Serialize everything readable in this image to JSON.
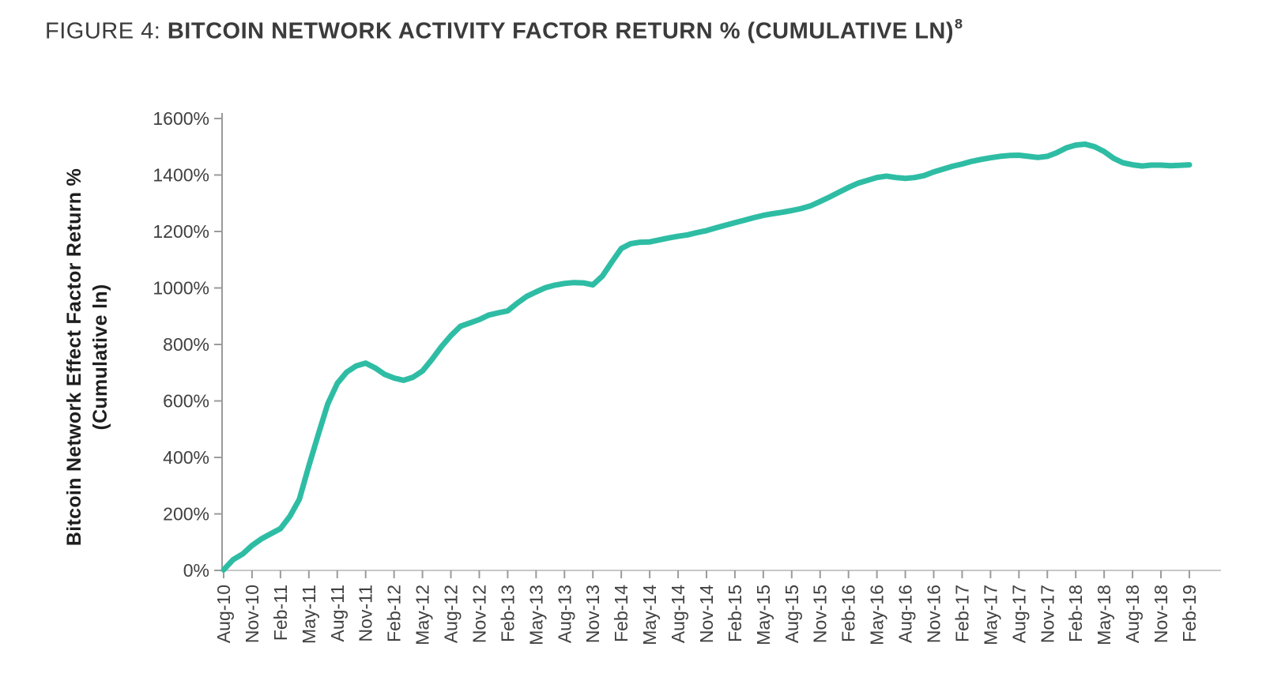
{
  "figure": {
    "title_prefix": "FIGURE 4: ",
    "title_main": "BITCOIN NETWORK ACTIVITY FACTOR RETURN % (CUMULATIVE LN)",
    "title_superscript": "8"
  },
  "colors": {
    "line": "#2ebda4",
    "title_text": "#3b3b3b",
    "tick_text": "#414042",
    "axis_label_text": "#1e1e1e",
    "x_axis_line": "#c7c7c7",
    "y_axis_line": "#9b9b9b",
    "tick_mark": "#9b9b9b",
    "background": "#ffffff"
  },
  "chart_data": {
    "type": "line",
    "title": "FIGURE 4: BITCOIN NETWORK ACTIVITY FACTOR RETURN % (CUMULATIVE LN)8",
    "xlabel": "",
    "ylabel_line1": "Bitcoin Network Effect Factor Return %",
    "ylabel_line2": "(Cumulative ln)",
    "ylim": [
      0,
      1600
    ],
    "y_tick_step": 200,
    "y_tick_labels": [
      "0%",
      "200%",
      "400%",
      "600%",
      "800%",
      "1000%",
      "1200%",
      "1400%",
      "1600%"
    ],
    "x_tick_labels": [
      "Aug-10",
      "Nov-10",
      "Feb-11",
      "May-11",
      "Aug-11",
      "Nov-11",
      "Feb-12",
      "May-12",
      "Aug-12",
      "Nov-12",
      "Feb-13",
      "May-13",
      "Aug-13",
      "Nov-13",
      "Feb-14",
      "May-14",
      "Aug-14",
      "Nov-14",
      "Feb-15",
      "May-15",
      "Aug-15",
      "Nov-15",
      "Feb-16",
      "May-16",
      "Aug-16",
      "Nov-16",
      "Feb-17",
      "May-17",
      "Aug-17",
      "Nov-17",
      "Feb-18",
      "May-18",
      "Aug-18",
      "Nov-18",
      "Feb-19"
    ],
    "grid": false,
    "legend": "none",
    "series": [
      {
        "name": "Bitcoin Network Effect Factor Return % (Cumulative ln)",
        "color": "#2ebda4",
        "x_start": "Aug-10",
        "x_end": "Feb-19",
        "x_step": "monthly",
        "unit": "percent",
        "values": [
          2,
          38,
          58,
          88,
          112,
          130,
          148,
          192,
          252,
          370,
          482,
          590,
          662,
          702,
          724,
          734,
          717,
          694,
          681,
          673,
          684,
          706,
          747,
          792,
          831,
          864,
          876,
          888,
          904,
          912,
          919,
          946,
          970,
          986,
          1001,
          1010,
          1016,
          1019,
          1018,
          1011,
          1042,
          1092,
          1140,
          1157,
          1162,
          1163,
          1170,
          1177,
          1183,
          1188,
          1196,
          1203,
          1213,
          1222,
          1231,
          1240,
          1249,
          1257,
          1263,
          1268,
          1274,
          1281,
          1291,
          1306,
          1322,
          1339,
          1356,
          1371,
          1381,
          1391,
          1396,
          1391,
          1388,
          1391,
          1398,
          1411,
          1421,
          1431,
          1439,
          1448,
          1455,
          1461,
          1466,
          1469,
          1470,
          1466,
          1462,
          1466,
          1479,
          1496,
          1506,
          1509,
          1500,
          1483,
          1459,
          1443,
          1436,
          1432,
          1435,
          1435,
          1433,
          1434,
          1436
        ]
      }
    ]
  }
}
